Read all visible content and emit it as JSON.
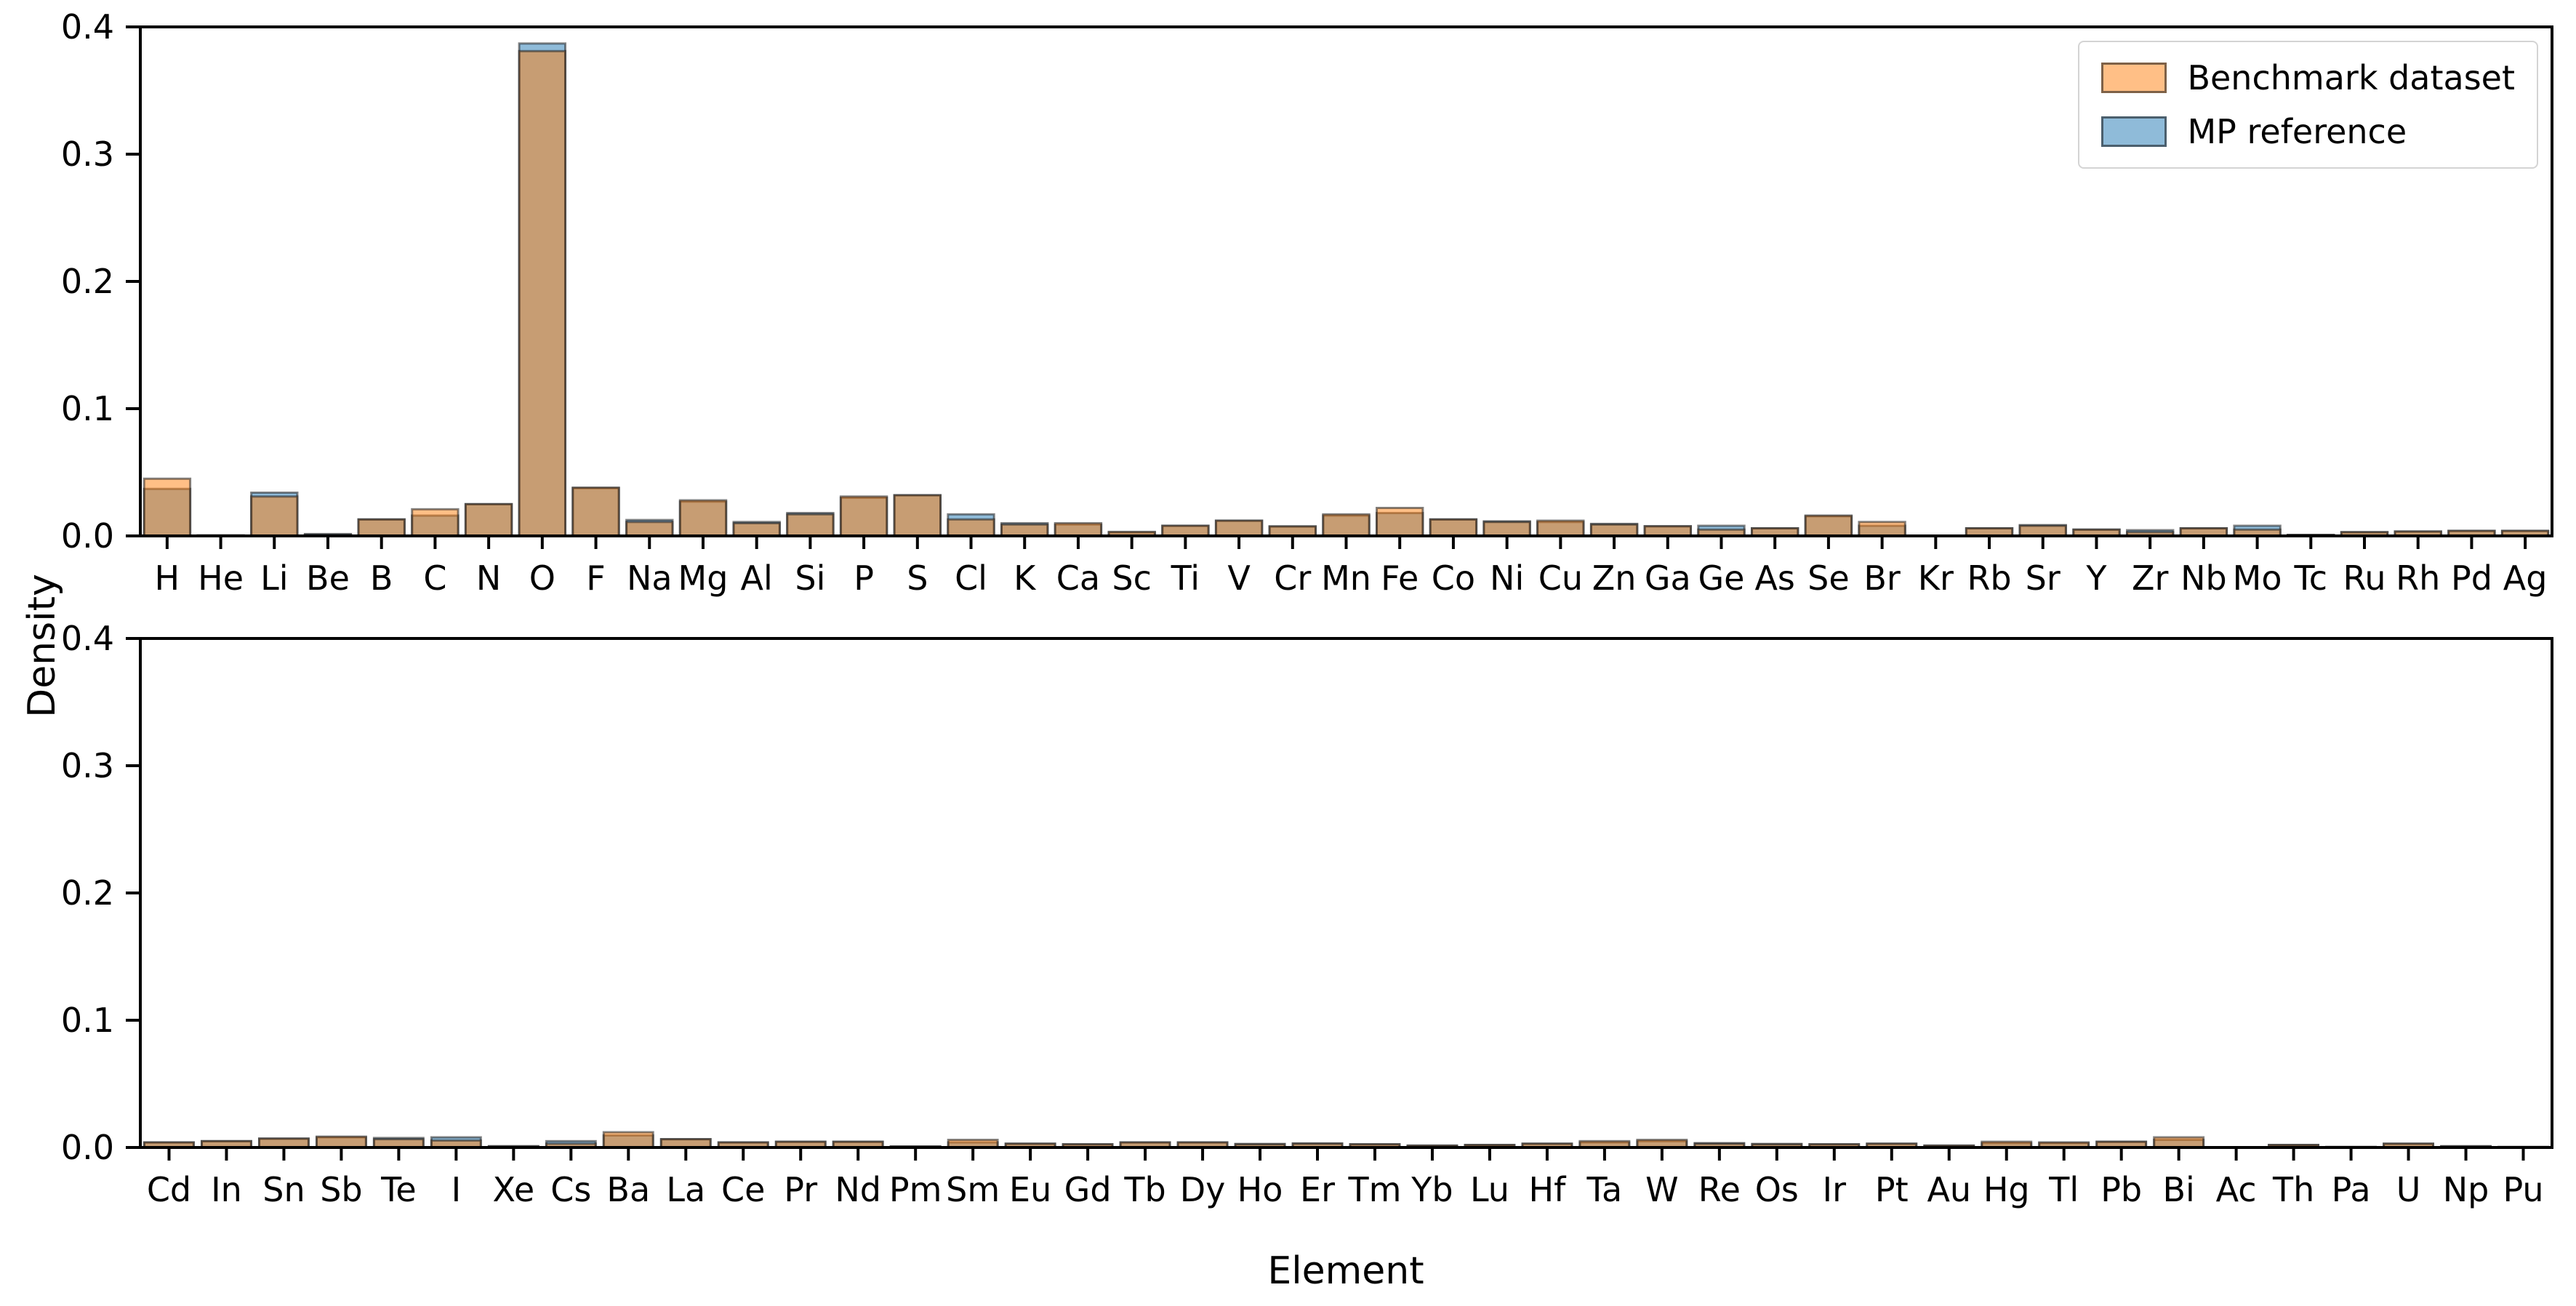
{
  "figure": {
    "ylabel": "Density",
    "xlabel": "Element",
    "colors": {
      "benchmark_fill": "#ff7f0e",
      "mp_fill": "#1f77b4",
      "fill_alpha": 0.5,
      "edge": "#1f1f1f",
      "edge_alpha": 0.55,
      "axis": "#000000"
    },
    "legend": {
      "items": [
        {
          "label": "Benchmark dataset"
        },
        {
          "label": "MP reference"
        }
      ]
    }
  },
  "chart_data": [
    {
      "type": "bar",
      "panel": "top",
      "title": "",
      "xlabel": "",
      "ylabel": "Density",
      "ylim": [
        0,
        0.4
      ],
      "yticks": [
        "0.0",
        "0.1",
        "0.2",
        "0.3",
        "0.4"
      ],
      "grid": false,
      "legend_position": "upper right",
      "categories": [
        "H",
        "He",
        "Li",
        "Be",
        "B",
        "C",
        "N",
        "O",
        "F",
        "Na",
        "Mg",
        "Al",
        "Si",
        "P",
        "S",
        "Cl",
        "K",
        "Ca",
        "Sc",
        "Ti",
        "V",
        "Cr",
        "Mn",
        "Fe",
        "Co",
        "Ni",
        "Cu",
        "Zn",
        "Ga",
        "Ge",
        "As",
        "Se",
        "Br",
        "Kr",
        "Rb",
        "Sr",
        "Y",
        "Zr",
        "Nb",
        "Mo",
        "Tc",
        "Ru",
        "Rh",
        "Pd",
        "Ag"
      ],
      "series": [
        {
          "name": "Benchmark dataset",
          "values": [
            0.045,
            0.0004,
            0.031,
            0.001,
            0.013,
            0.021,
            0.025,
            0.381,
            0.038,
            0.011,
            0.028,
            0.01,
            0.017,
            0.031,
            0.032,
            0.013,
            0.009,
            0.01,
            0.0032,
            0.008,
            0.012,
            0.0075,
            0.017,
            0.022,
            0.013,
            0.011,
            0.012,
            0.009,
            0.0076,
            0.005,
            0.006,
            0.016,
            0.011,
            0.0003,
            0.006,
            0.008,
            0.005,
            0.003,
            0.006,
            0.005,
            0.0008,
            0.003,
            0.0035,
            0.004,
            0.004
          ]
        },
        {
          "name": "MP reference",
          "values": [
            0.037,
            0.0004,
            0.034,
            0.0015,
            0.013,
            0.016,
            0.025,
            0.387,
            0.0375,
            0.0125,
            0.027,
            0.011,
            0.018,
            0.03,
            0.032,
            0.017,
            0.01,
            0.009,
            0.0028,
            0.008,
            0.012,
            0.0075,
            0.016,
            0.018,
            0.013,
            0.0115,
            0.011,
            0.0095,
            0.0076,
            0.008,
            0.006,
            0.0155,
            0.008,
            0.0003,
            0.006,
            0.0085,
            0.005,
            0.0045,
            0.006,
            0.008,
            0.0008,
            0.003,
            0.0035,
            0.004,
            0.004
          ]
        }
      ]
    },
    {
      "type": "bar",
      "panel": "bottom",
      "title": "",
      "xlabel": "Element",
      "ylabel": "Density",
      "ylim": [
        0,
        0.4
      ],
      "yticks": [
        "0.0",
        "0.1",
        "0.2",
        "0.3",
        "0.4"
      ],
      "grid": false,
      "legend_position": "none",
      "categories": [
        "Cd",
        "In",
        "Sn",
        "Sb",
        "Te",
        "I",
        "Xe",
        "Cs",
        "Ba",
        "La",
        "Ce",
        "Pr",
        "Nd",
        "Pm",
        "Sm",
        "Eu",
        "Gd",
        "Tb",
        "Dy",
        "Ho",
        "Er",
        "Tm",
        "Yb",
        "Lu",
        "Hf",
        "Ta",
        "W",
        "Re",
        "Os",
        "Ir",
        "Pt",
        "Au",
        "Hg",
        "Tl",
        "Pb",
        "Bi",
        "Ac",
        "Th",
        "Pa",
        "U",
        "Np",
        "Pu"
      ],
      "series": [
        {
          "name": "Benchmark dataset",
          "values": [
            0.004,
            0.005,
            0.007,
            0.0085,
            0.0065,
            0.0055,
            0.0008,
            0.003,
            0.012,
            0.0065,
            0.004,
            0.0045,
            0.0045,
            0.0008,
            0.006,
            0.003,
            0.0025,
            0.004,
            0.004,
            0.0025,
            0.003,
            0.0025,
            0.0015,
            0.002,
            0.003,
            0.005,
            0.006,
            0.003,
            0.0025,
            0.0025,
            0.003,
            0.0015,
            0.0045,
            0.004,
            0.0045,
            0.008,
            0.0003,
            0.002,
            0.0004,
            0.003,
            0.001,
            0.0004
          ]
        },
        {
          "name": "MP reference",
          "values": [
            0.004,
            0.005,
            0.007,
            0.008,
            0.0075,
            0.008,
            0.0011,
            0.005,
            0.0095,
            0.0065,
            0.004,
            0.0045,
            0.0045,
            0.0008,
            0.004,
            0.003,
            0.0025,
            0.004,
            0.004,
            0.0028,
            0.0032,
            0.0025,
            0.0015,
            0.002,
            0.003,
            0.004,
            0.005,
            0.0034,
            0.0028,
            0.0025,
            0.003,
            0.0015,
            0.0035,
            0.0035,
            0.0045,
            0.006,
            0.0003,
            0.002,
            0.0004,
            0.003,
            0.001,
            0.0004
          ]
        }
      ]
    }
  ]
}
